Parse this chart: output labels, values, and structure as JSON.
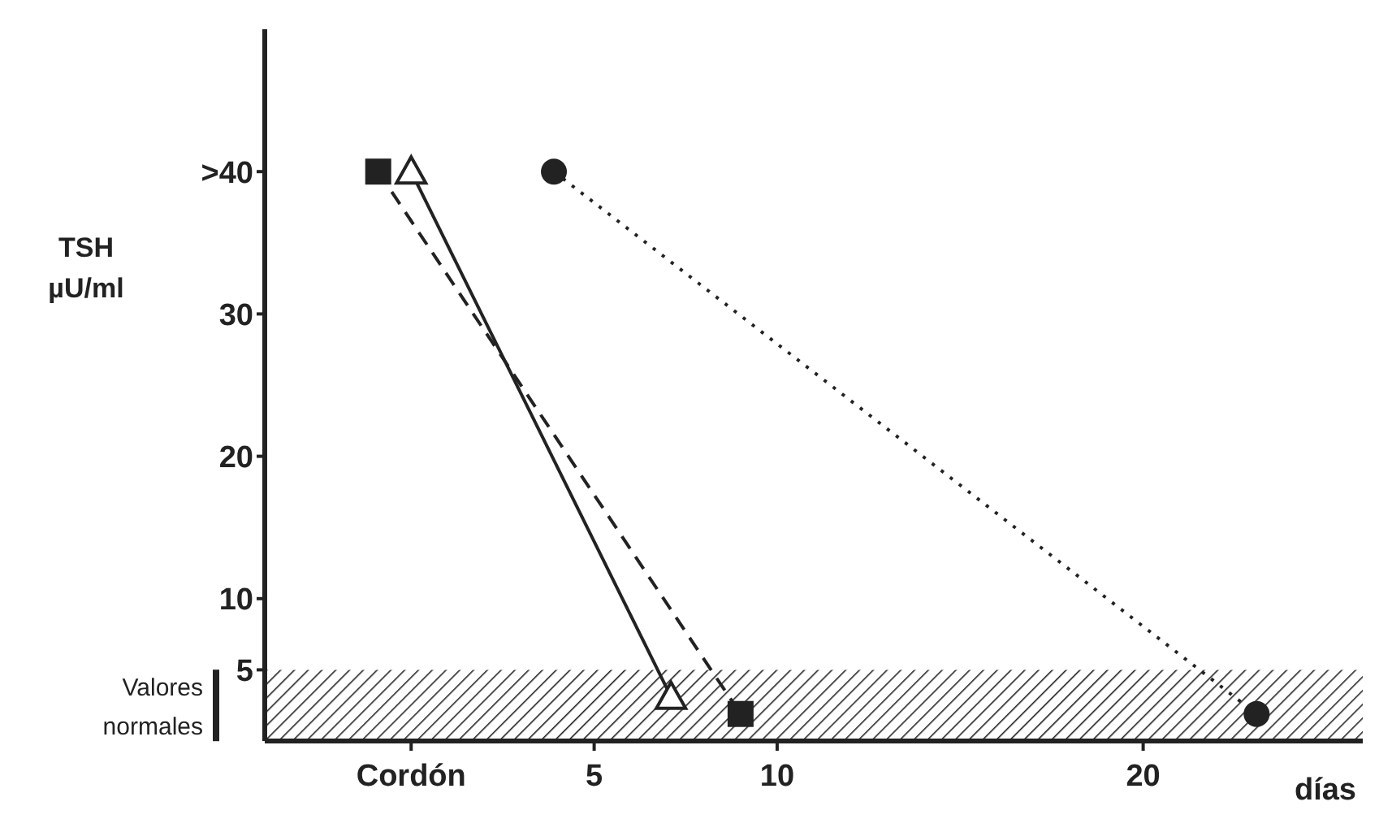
{
  "chart_data": {
    "type": "line",
    "xlabel": "días",
    "ylabel": "TSH µU/ml",
    "xlim": [
      -4,
      26
    ],
    "ylim": [
      0,
      50
    ],
    "xticks": [
      {
        "value": 0,
        "label": "Cordón"
      },
      5,
      10,
      20
    ],
    "yticks": [
      5,
      10,
      20,
      30,
      {
        "value": 40,
        "label": ">40"
      }
    ],
    "bands": [
      {
        "axis": "y",
        "from": 0,
        "to": 5,
        "label": "Valores normales",
        "color": "#222222"
      }
    ],
    "series": [
      {
        "color": "#222222",
        "marker": "square",
        "line_style": "dashed",
        "x": [
          -0.9,
          9.0
        ],
        "values": [
          40,
          1.9
        ]
      },
      {
        "color": "#222222",
        "marker": "triangle",
        "line_style": "solid",
        "x": [
          0,
          7.1
        ],
        "values": [
          40,
          3.1
        ]
      },
      {
        "color": "#222222",
        "marker": "circle",
        "line_style": "dotted",
        "x": [
          3.9,
          23.1
        ],
        "values": [
          40,
          1.9
        ]
      }
    ]
  }
}
